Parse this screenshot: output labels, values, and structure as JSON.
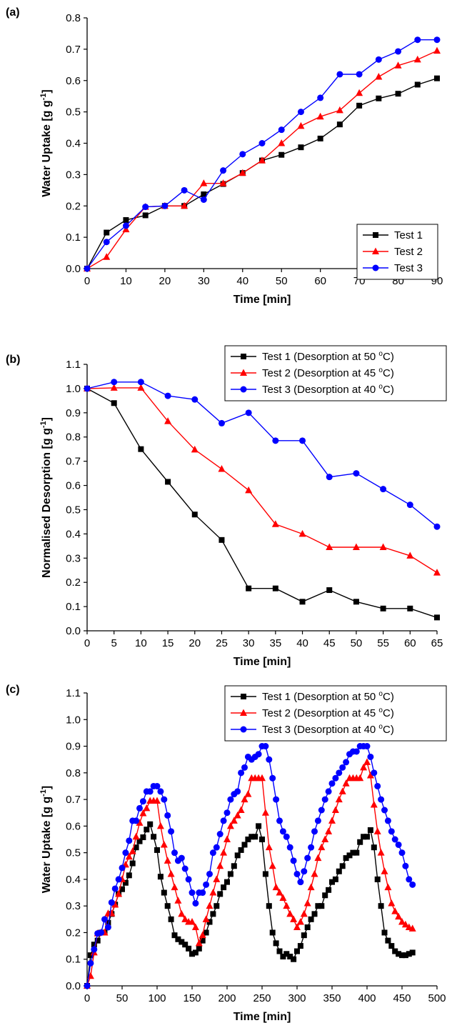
{
  "chart_data": [
    {
      "id": "a",
      "type": "line",
      "panel_label": "(a)",
      "xlabel": "Time [min]",
      "ylabel": {
        "main": "Water Uptake [g g",
        "sup": "-1",
        "end": "]"
      },
      "xlim": [
        0,
        90
      ],
      "ylim": [
        0,
        0.8
      ],
      "xticks": [
        0,
        10,
        20,
        30,
        40,
        50,
        60,
        70,
        80,
        90
      ],
      "yticks": [
        0.0,
        0.1,
        0.2,
        0.3,
        0.4,
        0.5,
        0.6,
        0.7,
        0.8
      ],
      "legend_position": "bottom-right",
      "series": [
        {
          "name": "Test 1",
          "color": "#000000",
          "marker": "square",
          "x": [
            0,
            5,
            10,
            15,
            20,
            25,
            30,
            35,
            40,
            45,
            50,
            55,
            60,
            65,
            70,
            75,
            80,
            85,
            90
          ],
          "y": [
            0.0,
            0.115,
            0.155,
            0.17,
            0.2,
            0.2,
            0.237,
            0.27,
            0.305,
            0.345,
            0.363,
            0.387,
            0.415,
            0.46,
            0.52,
            0.543,
            0.558,
            0.587,
            0.607
          ]
        },
        {
          "name": "Test 2",
          "color": "#ff0000",
          "marker": "triangle",
          "x": [
            0,
            5,
            10,
            15,
            20,
            25,
            30,
            35,
            40,
            45,
            50,
            55,
            60,
            65,
            70,
            75,
            80,
            85,
            90
          ],
          "y": [
            0.0,
            0.037,
            0.125,
            0.197,
            0.2,
            0.2,
            0.272,
            0.272,
            0.305,
            0.345,
            0.4,
            0.455,
            0.485,
            0.505,
            0.56,
            0.612,
            0.648,
            0.667,
            0.695
          ]
        },
        {
          "name": "Test 3",
          "color": "#0000ff",
          "marker": "circle",
          "x": [
            0,
            5,
            10,
            15,
            20,
            25,
            30,
            35,
            40,
            45,
            50,
            55,
            60,
            65,
            70,
            75,
            80,
            85,
            90
          ],
          "y": [
            0.0,
            0.085,
            0.137,
            0.197,
            0.2,
            0.25,
            0.22,
            0.313,
            0.365,
            0.4,
            0.443,
            0.5,
            0.545,
            0.62,
            0.62,
            0.667,
            0.693,
            0.73,
            0.73
          ]
        }
      ]
    },
    {
      "id": "b",
      "type": "line",
      "panel_label": "(b)",
      "xlabel": "Time [min]",
      "ylabel": {
        "main": "Normalised Desorption [g g",
        "sup": "-1",
        "end": "]"
      },
      "xlim": [
        0,
        65
      ],
      "ylim": [
        0,
        1.1
      ],
      "xticks": [
        0,
        5,
        10,
        15,
        20,
        25,
        30,
        35,
        40,
        45,
        50,
        55,
        60,
        65
      ],
      "yticks": [
        0.0,
        0.1,
        0.2,
        0.3,
        0.4,
        0.5,
        0.6,
        0.7,
        0.8,
        0.9,
        1.0,
        1.1
      ],
      "legend_position": "top-right",
      "series": [
        {
          "name": "Test 1 (Desorption at 50 ",
          "name_sup": "o",
          "name_end": "C)",
          "color": "#000000",
          "marker": "square",
          "x": [
            0,
            5,
            10,
            15,
            20,
            25,
            30,
            35,
            40,
            45,
            50,
            55,
            60,
            65
          ],
          "y": [
            1.0,
            0.94,
            0.75,
            0.615,
            0.48,
            0.375,
            0.175,
            0.175,
            0.12,
            0.168,
            0.12,
            0.092,
            0.092,
            0.055
          ]
        },
        {
          "name": "Test 2 (Desorption at 45 ",
          "name_sup": "o",
          "name_end": "C)",
          "color": "#ff0000",
          "marker": "triangle",
          "x": [
            0,
            5,
            10,
            15,
            20,
            25,
            30,
            35,
            40,
            45,
            50,
            55,
            60,
            65
          ],
          "y": [
            1.0,
            1.003,
            1.003,
            0.865,
            0.748,
            0.668,
            0.58,
            0.44,
            0.4,
            0.345,
            0.345,
            0.345,
            0.31,
            0.24
          ]
        },
        {
          "name": "Test 3 (Desorption at 40 ",
          "name_sup": "o",
          "name_end": "C)",
          "color": "#0000ff",
          "marker": "circle",
          "x": [
            0,
            5,
            10,
            15,
            20,
            25,
            30,
            35,
            40,
            45,
            50,
            55,
            60,
            65
          ],
          "y": [
            1.0,
            1.027,
            1.027,
            0.97,
            0.955,
            0.857,
            0.9,
            0.785,
            0.785,
            0.635,
            0.65,
            0.585,
            0.52,
            0.43
          ]
        }
      ]
    },
    {
      "id": "c",
      "type": "line",
      "panel_label": "(c)",
      "xlabel": "Time [min]",
      "ylabel": {
        "main": "Water Uptake [g g",
        "sup": "-1",
        "end": "]"
      },
      "xlim": [
        0,
        500
      ],
      "ylim": [
        0,
        1.1
      ],
      "xticks": [
        0,
        50,
        100,
        150,
        200,
        250,
        300,
        350,
        400,
        450,
        500
      ],
      "yticks": [
        0.0,
        0.1,
        0.2,
        0.3,
        0.4,
        0.5,
        0.6,
        0.7,
        0.8,
        0.9,
        1.0,
        1.1
      ],
      "legend_position": "top-right",
      "series": [
        {
          "name": "Test 1 (Desorption at 50 ",
          "name_sup": "o",
          "name_end": "C)",
          "color": "#000000",
          "marker": "square",
          "x": [
            0,
            5,
            10,
            15,
            20,
            25,
            30,
            35,
            40,
            45,
            50,
            55,
            60,
            65,
            70,
            75,
            80,
            85,
            90,
            95,
            100,
            105,
            110,
            115,
            120,
            125,
            130,
            135,
            140,
            145,
            150,
            155,
            160,
            165,
            170,
            175,
            180,
            185,
            190,
            195,
            200,
            205,
            210,
            215,
            220,
            225,
            230,
            235,
            240,
            245,
            250,
            255,
            260,
            265,
            270,
            275,
            280,
            285,
            290,
            295,
            300,
            305,
            310,
            315,
            320,
            325,
            330,
            335,
            340,
            345,
            350,
            355,
            360,
            365,
            370,
            375,
            380,
            385,
            390,
            395,
            400,
            405,
            410,
            415,
            420,
            425,
            430,
            435,
            440,
            445,
            450,
            455,
            460,
            465
          ],
          "y": [
            0.0,
            0.115,
            0.155,
            0.17,
            0.2,
            0.2,
            0.237,
            0.27,
            0.305,
            0.345,
            0.363,
            0.387,
            0.415,
            0.46,
            0.52,
            0.543,
            0.558,
            0.587,
            0.607,
            0.56,
            0.51,
            0.41,
            0.35,
            0.3,
            0.25,
            0.19,
            0.175,
            0.165,
            0.155,
            0.14,
            0.12,
            0.125,
            0.14,
            0.17,
            0.2,
            0.24,
            0.27,
            0.3,
            0.345,
            0.37,
            0.39,
            0.42,
            0.45,
            0.49,
            0.51,
            0.53,
            0.55,
            0.56,
            0.56,
            0.6,
            0.55,
            0.42,
            0.3,
            0.2,
            0.16,
            0.13,
            0.11,
            0.12,
            0.11,
            0.1,
            0.13,
            0.15,
            0.19,
            0.22,
            0.25,
            0.27,
            0.3,
            0.3,
            0.34,
            0.36,
            0.39,
            0.4,
            0.43,
            0.45,
            0.48,
            0.49,
            0.5,
            0.5,
            0.54,
            0.56,
            0.56,
            0.585,
            0.52,
            0.4,
            0.3,
            0.2,
            0.17,
            0.15,
            0.13,
            0.12,
            0.115,
            0.115,
            0.12,
            0.125
          ]
        },
        {
          "name": "Test 2 (Desorption at 45 ",
          "name_sup": "o",
          "name_end": "C)",
          "color": "#ff0000",
          "marker": "triangle",
          "x": [
            0,
            5,
            10,
            15,
            20,
            25,
            30,
            35,
            40,
            45,
            50,
            55,
            60,
            65,
            70,
            75,
            80,
            85,
            90,
            95,
            100,
            105,
            110,
            115,
            120,
            125,
            130,
            135,
            140,
            145,
            150,
            155,
            160,
            165,
            170,
            175,
            180,
            185,
            190,
            195,
            200,
            205,
            210,
            215,
            220,
            225,
            230,
            235,
            240,
            245,
            250,
            255,
            260,
            265,
            270,
            275,
            280,
            285,
            290,
            295,
            300,
            305,
            310,
            315,
            320,
            325,
            330,
            335,
            340,
            345,
            350,
            355,
            360,
            365,
            370,
            375,
            380,
            385,
            390,
            395,
            400,
            405,
            410,
            415,
            420,
            425,
            430,
            435,
            440,
            445,
            450,
            455,
            460,
            465
          ],
          "y": [
            0.0,
            0.037,
            0.125,
            0.197,
            0.2,
            0.2,
            0.272,
            0.272,
            0.305,
            0.345,
            0.4,
            0.455,
            0.485,
            0.505,
            0.56,
            0.612,
            0.648,
            0.667,
            0.695,
            0.695,
            0.695,
            0.6,
            0.53,
            0.47,
            0.42,
            0.37,
            0.32,
            0.27,
            0.25,
            0.24,
            0.24,
            0.22,
            0.16,
            0.19,
            0.25,
            0.3,
            0.35,
            0.4,
            0.45,
            0.5,
            0.55,
            0.6,
            0.62,
            0.64,
            0.66,
            0.7,
            0.72,
            0.78,
            0.78,
            0.78,
            0.78,
            0.65,
            0.52,
            0.45,
            0.37,
            0.35,
            0.33,
            0.3,
            0.27,
            0.25,
            0.22,
            0.24,
            0.27,
            0.31,
            0.37,
            0.42,
            0.48,
            0.52,
            0.55,
            0.58,
            0.62,
            0.66,
            0.7,
            0.73,
            0.76,
            0.78,
            0.78,
            0.78,
            0.78,
            0.82,
            0.84,
            0.79,
            0.68,
            0.58,
            0.5,
            0.43,
            0.37,
            0.31,
            0.28,
            0.26,
            0.24,
            0.23,
            0.22,
            0.215
          ]
        },
        {
          "name": "Test 3 (Desorption at 40 ",
          "name_sup": "o",
          "name_end": "C)",
          "color": "#0000ff",
          "marker": "circle",
          "x": [
            0,
            5,
            10,
            15,
            20,
            25,
            30,
            35,
            40,
            45,
            50,
            55,
            60,
            65,
            70,
            75,
            80,
            85,
            90,
            95,
            100,
            105,
            110,
            115,
            120,
            125,
            130,
            135,
            140,
            145,
            150,
            155,
            160,
            165,
            170,
            175,
            180,
            185,
            190,
            195,
            200,
            205,
            210,
            215,
            220,
            225,
            230,
            235,
            240,
            245,
            250,
            255,
            260,
            265,
            270,
            275,
            280,
            285,
            290,
            295,
            300,
            305,
            310,
            315,
            320,
            325,
            330,
            335,
            340,
            345,
            350,
            355,
            360,
            365,
            370,
            375,
            380,
            385,
            390,
            395,
            400,
            405,
            410,
            415,
            420,
            425,
            430,
            435,
            440,
            445,
            450,
            455,
            460,
            465
          ],
          "y": [
            0.0,
            0.085,
            0.137,
            0.197,
            0.2,
            0.25,
            0.22,
            0.313,
            0.365,
            0.4,
            0.443,
            0.5,
            0.545,
            0.62,
            0.62,
            0.667,
            0.693,
            0.73,
            0.73,
            0.75,
            0.75,
            0.73,
            0.7,
            0.64,
            0.58,
            0.5,
            0.47,
            0.48,
            0.44,
            0.4,
            0.35,
            0.31,
            0.35,
            0.35,
            0.38,
            0.42,
            0.5,
            0.52,
            0.57,
            0.62,
            0.65,
            0.7,
            0.72,
            0.73,
            0.8,
            0.82,
            0.86,
            0.85,
            0.86,
            0.87,
            0.9,
            0.9,
            0.85,
            0.78,
            0.7,
            0.62,
            0.58,
            0.56,
            0.52,
            0.47,
            0.42,
            0.39,
            0.43,
            0.48,
            0.52,
            0.58,
            0.62,
            0.66,
            0.7,
            0.73,
            0.76,
            0.78,
            0.8,
            0.82,
            0.84,
            0.87,
            0.88,
            0.88,
            0.9,
            0.9,
            0.9,
            0.86,
            0.8,
            0.75,
            0.7,
            0.66,
            0.62,
            0.58,
            0.55,
            0.53,
            0.5,
            0.45,
            0.4,
            0.38
          ]
        }
      ]
    }
  ]
}
